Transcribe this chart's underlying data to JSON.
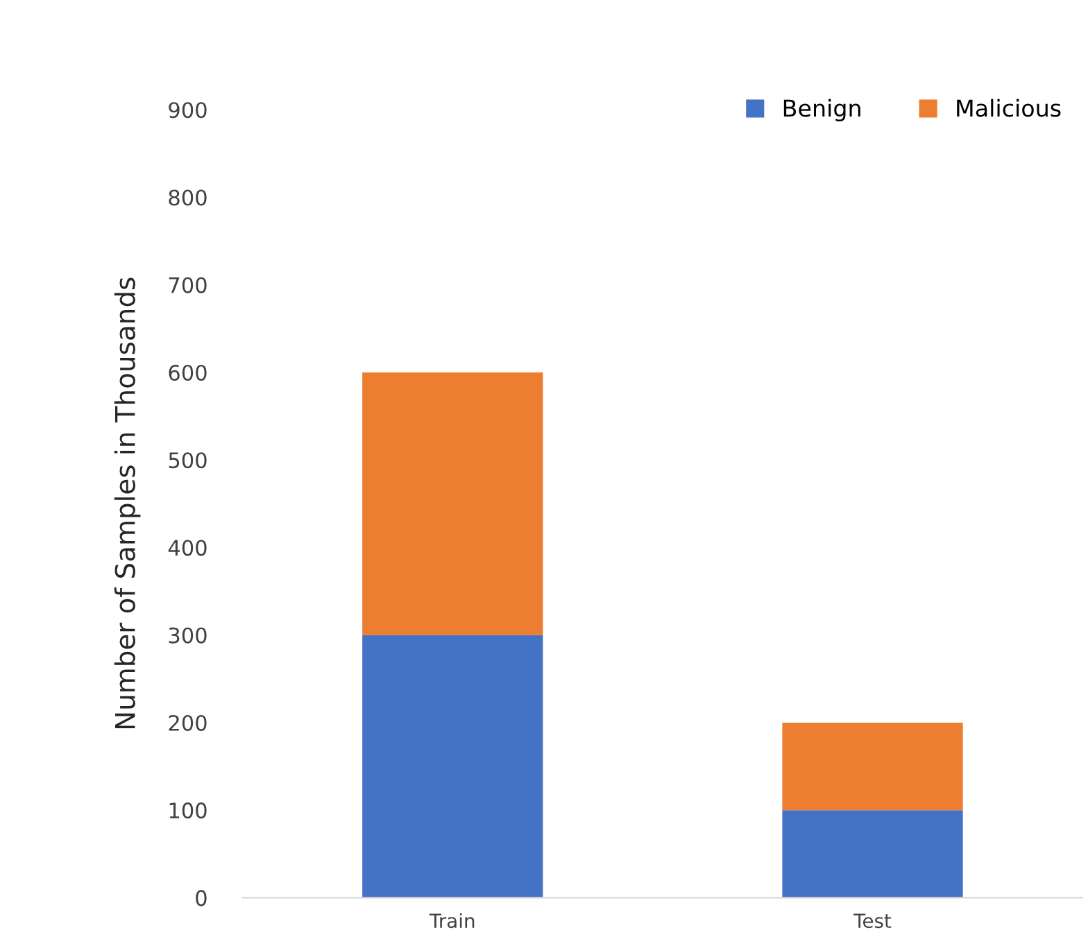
{
  "chart_data": {
    "type": "bar",
    "stacked": true,
    "ylabel": "Number of Samples in Thousands",
    "categories": [
      "Train",
      "Test"
    ],
    "series": [
      {
        "name": "Benign",
        "color": "#4472c4",
        "values": [
          300,
          100
        ]
      },
      {
        "name": "Malicious",
        "color": "#ed7d31",
        "values": [
          300,
          100
        ]
      }
    ],
    "ylim": [
      0,
      900
    ],
    "yticks": [
      0,
      100,
      200,
      300,
      400,
      500,
      600,
      700,
      800,
      900
    ],
    "grid": false,
    "legend": "top right"
  }
}
